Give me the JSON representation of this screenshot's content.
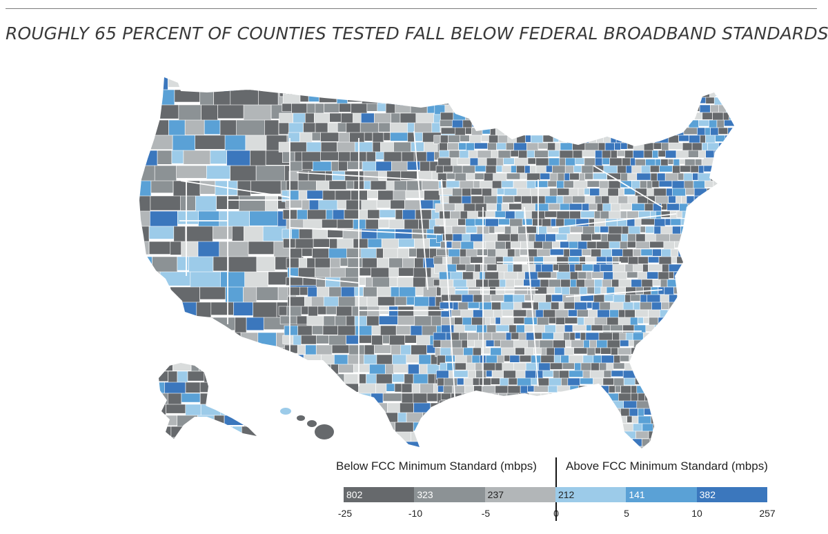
{
  "title": "ROUGHLY 65 PERCENT OF COUNTIES TESTED FALL BELOW FEDERAL BROADBAND STANDARDS",
  "legend": {
    "below_label": "Below FCC Minimum Standard (mbps)",
    "above_label": "Above FCC Minimum Standard (mbps)",
    "bins": [
      {
        "count": "802",
        "from": -25,
        "to": -10,
        "color": "#66696c",
        "group": "below"
      },
      {
        "count": "323",
        "from": -10,
        "to": -5,
        "color": "#8c9295",
        "group": "below"
      },
      {
        "count": "237",
        "from": -5,
        "to": 0,
        "color": "#b2b6b8",
        "group": "below"
      },
      {
        "count": "212",
        "from": 0,
        "to": 5,
        "color": "#9ccbe9",
        "group": "above"
      },
      {
        "count": "141",
        "from": 5,
        "to": 10,
        "color": "#5aa1d6",
        "group": "above"
      },
      {
        "count": "382",
        "from": 10,
        "to": 257,
        "color": "#3b77bd",
        "group": "above"
      }
    ],
    "ticks": [
      "-25",
      "-10",
      "-5",
      "0",
      "5",
      "10",
      "257"
    ]
  },
  "map": {
    "no_data_color": "#d9dcdc",
    "border_color": "#ffffff"
  }
}
